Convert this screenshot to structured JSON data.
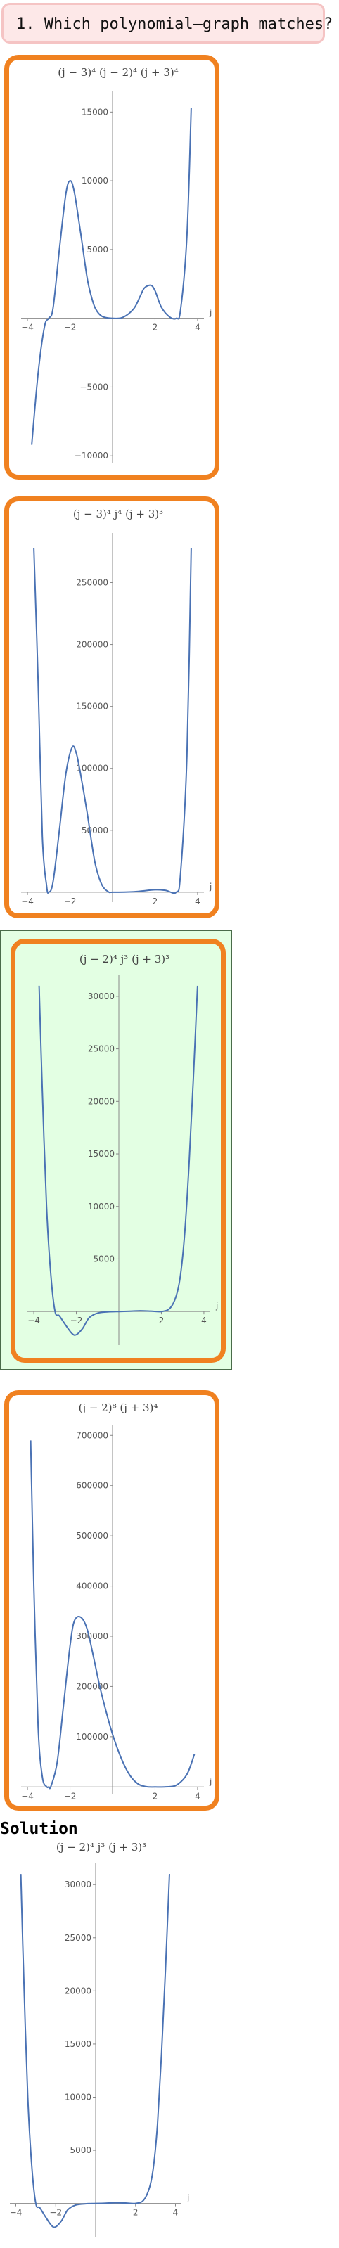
{
  "question": {
    "text": "1. Which polynomial–graph matches?"
  },
  "solution_heading": "Solution",
  "options": [
    {
      "title": "(j − 3)⁴ (j − 2)⁴ (j + 3)⁴",
      "selected": false
    },
    {
      "title": "(j − 3)⁴ j⁴ (j + 3)³",
      "selected": false
    },
    {
      "title": "(j − 2)⁴ j³ (j + 3)³",
      "selected": true
    },
    {
      "title": "(j − 2)⁸ (j + 3)⁴",
      "selected": false
    }
  ],
  "colors": {
    "card_border": "#f08120",
    "curve": "#4a72b4",
    "selected_bg": "#e3ffe3",
    "question_bg": "#fde8e8"
  },
  "chart_data": [
    {
      "type": "line",
      "title": "(j − 3)⁴ (j − 2)⁴ (j + 3)⁴",
      "xlabel": "j",
      "xlim": [
        -4.3,
        4.3
      ],
      "ylim": [
        -10500,
        16500
      ],
      "xticks": [
        -4,
        -2,
        2,
        4
      ],
      "xtick_labels": [
        "−4",
        "−2",
        "2",
        "4"
      ],
      "yticks": [
        -10000,
        -5000,
        5000,
        10000,
        15000
      ],
      "ytick_labels": [
        "−10000",
        "−5000",
        "5000",
        "10000",
        "15000"
      ],
      "series": [
        {
          "x": [
            -3.8,
            -3.5,
            -3.2,
            -3.0,
            -2.8,
            -2.5,
            -2.2,
            -2.0,
            -1.8,
            -1.5,
            -1.2,
            -1.0,
            -0.8,
            -0.5,
            0.0,
            0.5,
            1.0,
            1.3,
            1.5,
            1.8,
            2.0,
            2.3,
            2.7,
            3.0,
            3.2,
            3.5,
            3.7
          ],
          "y": [
            -9200,
            -4000,
            -600,
            0,
            700,
            5000,
            9000,
            10000,
            9200,
            6200,
            3000,
            1600,
            700,
            150,
            0,
            80,
            700,
            1600,
            2200,
            2400,
            2000,
            800,
            80,
            0,
            600,
            6000,
            15300
          ]
        }
      ]
    },
    {
      "type": "line",
      "title": "(j − 3)⁴ j⁴ (j + 3)³",
      "xlabel": "j",
      "xlim": [
        -4.3,
        4.3
      ],
      "ylim": [
        -8000,
        290000
      ],
      "xticks": [
        -4,
        -2,
        2,
        4
      ],
      "xtick_labels": [
        "−4",
        "−2",
        "2",
        "4"
      ],
      "yticks": [
        50000,
        100000,
        150000,
        200000,
        250000
      ],
      "ytick_labels": [
        "50000",
        "100000",
        "150000",
        "200000",
        "250000"
      ],
      "series": [
        {
          "x": [
            -3.7,
            -3.5,
            -3.3,
            -3.1,
            -3.0,
            -2.8,
            -2.5,
            -2.2,
            -1.9,
            -1.7,
            -1.5,
            -1.2,
            -1.0,
            -0.8,
            -0.5,
            -0.2,
            0.0,
            1.0,
            2.0,
            2.5,
            3.0,
            3.2,
            3.5,
            3.7
          ],
          "y": [
            278000,
            170000,
            45000,
            5000,
            0,
            8000,
            50000,
            95000,
            117000,
            112000,
            95000,
            65000,
            42000,
            22000,
            6000,
            400,
            0,
            400,
            2000,
            1500,
            0,
            15000,
            110000,
            278000
          ]
        }
      ]
    },
    {
      "type": "line",
      "title": "(j − 2)⁴ j³ (j + 3)³",
      "xlabel": "j",
      "xlim": [
        -4.3,
        4.3
      ],
      "ylim": [
        -3200,
        32000
      ],
      "xticks": [
        -4,
        -2,
        2,
        4
      ],
      "xtick_labels": [
        "−4",
        "−2",
        "2",
        "4"
      ],
      "yticks": [
        5000,
        10000,
        15000,
        20000,
        25000,
        30000
      ],
      "ytick_labels": [
        "5000",
        "10000",
        "15000",
        "20000",
        "25000",
        "30000"
      ],
      "series": [
        {
          "x": [
            -3.75,
            -3.6,
            -3.4,
            -3.2,
            -3.0,
            -2.8,
            -2.5,
            -2.2,
            -2.0,
            -1.7,
            -1.4,
            -1.0,
            -0.5,
            0.0,
            0.5,
            1.0,
            1.5,
            2.0,
            2.4,
            2.7,
            2.9,
            3.1,
            3.3,
            3.5,
            3.7
          ],
          "y": [
            31000,
            21000,
            10000,
            3500,
            0,
            -400,
            -1300,
            -2100,
            -2200,
            -1600,
            -600,
            -150,
            -30,
            0,
            30,
            70,
            40,
            0,
            300,
            1500,
            3500,
            7500,
            14000,
            22000,
            31000
          ]
        }
      ]
    },
    {
      "type": "line",
      "title": "(j − 2)⁸ (j + 3)⁴",
      "xlabel": "j",
      "xlim": [
        -4.3,
        4.3
      ],
      "ylim": [
        -15000,
        720000
      ],
      "xticks": [
        -4,
        -2,
        2,
        4
      ],
      "xtick_labels": [
        "−4",
        "−2",
        "2",
        "4"
      ],
      "yticks": [
        100000,
        200000,
        300000,
        400000,
        500000,
        600000,
        700000
      ],
      "ytick_labels": [
        "100000",
        "200000",
        "300000",
        "400000",
        "500000",
        "600000",
        "700000"
      ],
      "series": [
        {
          "x": [
            -3.85,
            -3.7,
            -3.5,
            -3.3,
            -3.1,
            -3.0,
            -2.9,
            -2.6,
            -2.3,
            -2.0,
            -1.8,
            -1.5,
            -1.2,
            -0.9,
            -0.6,
            -0.3,
            0.0,
            0.4,
            0.8,
            1.2,
            1.6,
            2.0,
            2.5,
            3.0,
            3.5,
            3.85
          ],
          "y": [
            690000,
            400000,
            120000,
            20000,
            500,
            0,
            800,
            50000,
            165000,
            280000,
            330000,
            338000,
            315000,
            260000,
            200000,
            150000,
            105000,
            58000,
            24000,
            6000,
            500,
            0,
            300,
            3500,
            25000,
            65000
          ]
        }
      ]
    },
    {
      "type": "line",
      "title": "(j − 2)⁴ j³ (j + 3)³",
      "xlabel": "j",
      "xlim": [
        -4.3,
        4.3
      ],
      "ylim": [
        -3200,
        32000
      ],
      "xticks": [
        -4,
        -2,
        2,
        4
      ],
      "xtick_labels": [
        "−4",
        "−2",
        "2",
        "4"
      ],
      "yticks": [
        5000,
        10000,
        15000,
        20000,
        25000,
        30000
      ],
      "ytick_labels": [
        "5000",
        "10000",
        "15000",
        "20000",
        "25000",
        "30000"
      ],
      "series": [
        {
          "x": [
            -3.75,
            -3.6,
            -3.4,
            -3.2,
            -3.0,
            -2.8,
            -2.5,
            -2.2,
            -2.0,
            -1.7,
            -1.4,
            -1.0,
            -0.5,
            0.0,
            0.5,
            1.0,
            1.5,
            2.0,
            2.4,
            2.7,
            2.9,
            3.1,
            3.3,
            3.5,
            3.7
          ],
          "y": [
            31000,
            21000,
            10000,
            3500,
            0,
            -400,
            -1300,
            -2100,
            -2200,
            -1600,
            -600,
            -150,
            -30,
            0,
            30,
            70,
            40,
            0,
            300,
            1500,
            3500,
            7500,
            14000,
            22000,
            31000
          ]
        }
      ]
    }
  ]
}
